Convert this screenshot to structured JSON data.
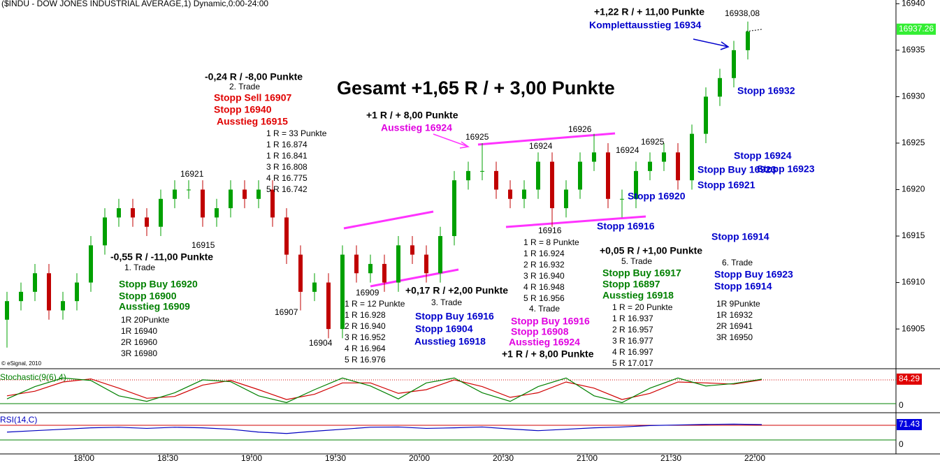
{
  "chart_data": {
    "type": "candlestick",
    "title": "($INDU - DOW JONES INDUSTRIAL AVERAGE,1) Dynamic,0:00-24:00",
    "copyright": "© eSignal, 2010",
    "up_color": "#00a000",
    "down_color": "#c00000",
    "ylim": [
      16900.8,
      16940.4
    ],
    "yticks": [
      16905,
      16910,
      16915,
      16920,
      16925,
      16930,
      16935,
      16940
    ],
    "xticks": [
      "18:00",
      "18:30",
      "19:00",
      "19:30",
      "20:00",
      "20:30",
      "21:00",
      "21:30",
      "22:00"
    ],
    "last_price": 16937.26,
    "last_price_label": "16937.26",
    "candles": [
      [
        16906,
        16909,
        16903,
        16908
      ],
      [
        16908,
        16910,
        16907,
        16909
      ],
      [
        16909,
        16912,
        16908,
        16911
      ],
      [
        16911,
        16912,
        16906,
        16907
      ],
      [
        16907,
        16909,
        16906,
        16908
      ],
      [
        16908,
        16911,
        16907,
        16910
      ],
      [
        16910,
        16915,
        16909,
        16914
      ],
      [
        16914,
        16918,
        16913,
        16917
      ],
      [
        16917,
        16919,
        16916,
        16918
      ],
      [
        16918,
        16919,
        16916,
        16917
      ],
      [
        16917,
        16918,
        16915,
        16916
      ],
      [
        16916,
        16920,
        16915,
        16919
      ],
      [
        16919,
        16921,
        16918,
        16920
      ],
      [
        16920,
        16921,
        16919,
        16920
      ],
      [
        16920,
        16921,
        16916,
        16917
      ],
      [
        16917,
        16919,
        16916,
        16918
      ],
      [
        16918,
        16921,
        16917,
        16920
      ],
      [
        16920,
        16921,
        16918,
        16919
      ],
      [
        16919,
        16921,
        16918,
        16920
      ],
      [
        16920,
        16921,
        16916,
        16917
      ],
      [
        16917,
        16918,
        16912,
        16913
      ],
      [
        16913,
        16914,
        16907,
        16909
      ],
      [
        16909,
        16911,
        16908,
        16910
      ],
      [
        16910,
        16911,
        16904,
        16905
      ],
      [
        16905,
        16914,
        16904,
        16913
      ],
      [
        16913,
        16914,
        16910,
        16911
      ],
      [
        16911,
        16913,
        16910,
        16912
      ],
      [
        16912,
        16913,
        16909,
        16910
      ],
      [
        16910,
        16915,
        16909,
        16914
      ],
      [
        16914,
        16915,
        16912,
        16913
      ],
      [
        16913,
        16914,
        16910,
        16911
      ],
      [
        16911,
        16916,
        16910,
        16915
      ],
      [
        16915,
        16922,
        16914,
        16921
      ],
      [
        16921,
        16923,
        16920,
        16922
      ],
      [
        16922,
        16925,
        16921,
        16922
      ],
      [
        16922,
        16923,
        16919,
        16920
      ],
      [
        16920,
        16921,
        16918,
        16919
      ],
      [
        16919,
        16921,
        16918,
        16920
      ],
      [
        16920,
        16924,
        16919,
        16923
      ],
      [
        16923,
        16924,
        16916,
        16918
      ],
      [
        16918,
        16921,
        16917,
        16920
      ],
      [
        16920,
        16924,
        16919,
        16923
      ],
      [
        16923,
        16926,
        16922,
        16924
      ],
      [
        16924,
        16925,
        16918,
        16919
      ],
      [
        16919,
        16920,
        16917,
        16919
      ],
      [
        16919,
        16923,
        16918,
        16922
      ],
      [
        16922,
        16924,
        16921,
        16923
      ],
      [
        16923,
        16925,
        16922,
        16924
      ],
      [
        16924,
        16925,
        16920,
        16921
      ],
      [
        16921,
        16927,
        16920,
        16926
      ],
      [
        16926,
        16931,
        16925,
        16930
      ],
      [
        16930,
        16933,
        16929,
        16932
      ],
      [
        16932,
        16936,
        16931,
        16935
      ],
      [
        16935,
        16938.08,
        16934,
        16937
      ]
    ],
    "stochastic": {
      "label": "Stochastic(9(6),4)",
      "last_label": "84.29",
      "last": 84.29,
      "k_color": "#008000",
      "d_color": "#d00000",
      "k": [
        20,
        60,
        88,
        80,
        30,
        12,
        40,
        82,
        76,
        30,
        8,
        50,
        88,
        62,
        20,
        72,
        88,
        40,
        12,
        60,
        88,
        30,
        8,
        55,
        88,
        62,
        70,
        84.29
      ],
      "d": [
        30,
        45,
        75,
        85,
        55,
        22,
        28,
        65,
        80,
        50,
        18,
        35,
        72,
        72,
        38,
        50,
        82,
        60,
        25,
        40,
        75,
        55,
        18,
        38,
        75,
        72,
        68,
        82
      ]
    },
    "rsi": {
      "label": "RSI(14,C)",
      "last_label": "71.43",
      "last": 71.43,
      "color": "#0000c0",
      "values": [
        45,
        50,
        55,
        60,
        62,
        58,
        62,
        60,
        55,
        45,
        40,
        48,
        55,
        62,
        63,
        58,
        60,
        63,
        56,
        50,
        55,
        60,
        63,
        68,
        70,
        72,
        73,
        71.43
      ]
    },
    "panel_zero": "0",
    "annotations": [
      {
        "text": "+1,22 R / + 11,00 Punkte",
        "color": "#000000"
      },
      {
        "text": "16938,08",
        "color": "#000000"
      },
      {
        "text": "Komplettausstieg 16934",
        "color": "#0000cc"
      },
      {
        "text": "Gesamt +1,65 R / + 3,00 Punkte",
        "color": "#000000"
      },
      {
        "text": "-0,24 R / -8,00 Punkte",
        "color": "#000000"
      },
      {
        "text": "2. Trade",
        "color": "#000000"
      },
      {
        "text": "Stopp Sell 16907",
        "color": "#e00000"
      },
      {
        "text": "Stopp 16940",
        "color": "#e00000"
      },
      {
        "text": "Ausstieg 16915",
        "color": "#e00000"
      },
      {
        "text": "1 R = 33 Punkte",
        "color": "#000000"
      },
      {
        "text": "1 R 16.874",
        "color": "#000000"
      },
      {
        "text": "1 R 16.841",
        "color": "#000000"
      },
      {
        "text": "3 R 16.808",
        "color": "#000000"
      },
      {
        "text": "4 R 16.775",
        "color": "#000000"
      },
      {
        "text": "5 R 16.742",
        "color": "#000000"
      },
      {
        "text": "16921",
        "color": "#000000"
      },
      {
        "text": "16915",
        "color": "#000000"
      },
      {
        "text": "-0,55 R / -11,00 Punkte",
        "color": "#000000"
      },
      {
        "text": "1. Trade",
        "color": "#000000"
      },
      {
        "text": "Stopp Buy 16920",
        "color": "#008000"
      },
      {
        "text": "Stopp 16900",
        "color": "#008000"
      },
      {
        "text": "Ausstieg 16909",
        "color": "#008000"
      },
      {
        "text": "1R 20Punkte",
        "color": "#000000"
      },
      {
        "text": "1R 16940",
        "color": "#000000"
      },
      {
        "text": "2R 16960",
        "color": "#000000"
      },
      {
        "text": "3R 16980",
        "color": "#000000"
      },
      {
        "text": "16907",
        "color": "#000000"
      },
      {
        "text": "16904",
        "color": "#000000"
      },
      {
        "text": "16909",
        "color": "#000000"
      },
      {
        "text": "1 R = 12 Punkte",
        "color": "#000000"
      },
      {
        "text": "1 R 16.928",
        "color": "#000000"
      },
      {
        "text": "2 R 16.940",
        "color": "#000000"
      },
      {
        "text": "3 R 16.952",
        "color": "#000000"
      },
      {
        "text": "4 R 16.964",
        "color": "#000000"
      },
      {
        "text": "5 R 16.976",
        "color": "#000000"
      },
      {
        "text": "+0,17 R / +2,00 Punkte",
        "color": "#000000"
      },
      {
        "text": "3. Trade",
        "color": "#000000"
      },
      {
        "text": "Stopp Buy 16916",
        "color": "#0000cc"
      },
      {
        "text": "Stopp 16904",
        "color": "#0000cc"
      },
      {
        "text": "Ausstieg 16918",
        "color": "#0000cc"
      },
      {
        "text": "+1 R / + 8,00 Punkte",
        "color": "#000000"
      },
      {
        "text": "Ausstieg 16924",
        "color": "#e000e0"
      },
      {
        "text": "16925",
        "color": "#000000"
      },
      {
        "text": "16924",
        "color": "#000000"
      },
      {
        "text": "16926",
        "color": "#000000"
      },
      {
        "text": "16924",
        "color": "#000000"
      },
      {
        "text": "16925",
        "color": "#000000"
      },
      {
        "text": "16916",
        "color": "#000000"
      },
      {
        "text": "1 R = 8 Punkte",
        "color": "#000000"
      },
      {
        "text": "1 R 16.924",
        "color": "#000000"
      },
      {
        "text": "2 R 16.932",
        "color": "#000000"
      },
      {
        "text": "3 R 16.940",
        "color": "#000000"
      },
      {
        "text": "4 R 16.948",
        "color": "#000000"
      },
      {
        "text": "5 R 16.956",
        "color": "#000000"
      },
      {
        "text": "4. Trade",
        "color": "#000000"
      },
      {
        "text": "Stopp Buy 16916",
        "color": "#e000e0"
      },
      {
        "text": "Stopp 16908",
        "color": "#e000e0"
      },
      {
        "text": "Ausstieg 16924",
        "color": "#e000e0"
      },
      {
        "text": "+1 R / + 8,00 Punkte",
        "color": "#000000"
      },
      {
        "text": "Stopp 16916",
        "color": "#0000cc"
      },
      {
        "text": "Stopp 16920",
        "color": "#0000cc"
      },
      {
        "text": "+0,05 R / +1,00 Punkte",
        "color": "#000000"
      },
      {
        "text": "5. Trade",
        "color": "#000000"
      },
      {
        "text": "Stopp Buy 16917",
        "color": "#008000"
      },
      {
        "text": "Stopp 16897",
        "color": "#008000"
      },
      {
        "text": "Ausstieg 16918",
        "color": "#008000"
      },
      {
        "text": "1 R = 20 Punkte",
        "color": "#000000"
      },
      {
        "text": "1 R 16.937",
        "color": "#000000"
      },
      {
        "text": "2 R 16.957",
        "color": "#000000"
      },
      {
        "text": "3 R 16.977",
        "color": "#000000"
      },
      {
        "text": "4 R 16.997",
        "color": "#000000"
      },
      {
        "text": "5 R 17.017",
        "color": "#000000"
      },
      {
        "text": "Stopp 16932",
        "color": "#0000cc"
      },
      {
        "text": "Stopp 16924",
        "color": "#0000cc"
      },
      {
        "text": "Stopp Buy 16923",
        "color": "#0000cc"
      },
      {
        "text": "Stopp 16923",
        "color": "#0000cc"
      },
      {
        "text": "Stopp 16921",
        "color": "#0000cc"
      },
      {
        "text": "Stopp 16914",
        "color": "#0000cc"
      },
      {
        "text": "6. Trade",
        "color": "#000000"
      },
      {
        "text": "Stopp Buy 16923",
        "color": "#0000cc"
      },
      {
        "text": "Stopp 16914",
        "color": "#0000cc"
      },
      {
        "text": "1R 9Punkte",
        "color": "#000000"
      },
      {
        "text": "1R 16932",
        "color": "#000000"
      },
      {
        "text": "2R 16941",
        "color": "#000000"
      },
      {
        "text": "3R 16950",
        "color": "#000000"
      }
    ]
  }
}
